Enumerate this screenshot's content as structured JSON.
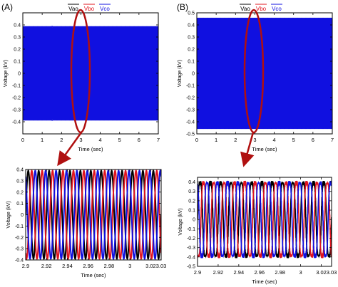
{
  "panels": [
    {
      "letter": "(A)"
    },
    {
      "letter": "(B)"
    }
  ],
  "legend": [
    {
      "label": "Vao",
      "color": "#000000"
    },
    {
      "label": "Vbo",
      "color": "#e0141e"
    },
    {
      "label": "Vco",
      "color": "#1010e0"
    }
  ],
  "chart_data": [
    {
      "id": "A-top",
      "type": "line",
      "xlabel": "Time (sec)",
      "ylabel": "Voltage (kV)",
      "xlim": [
        0,
        7
      ],
      "ylim": [
        -0.5,
        0.5
      ],
      "xticks": [
        0,
        1,
        2,
        3,
        4,
        5,
        6,
        7
      ],
      "yticks": [
        -0.4,
        -0.3,
        -0.2,
        -0.1,
        0,
        0.1,
        0.2,
        0.3,
        0.4
      ],
      "series": [
        {
          "name": "Vao",
          "amplitude_kV": 0.38
        },
        {
          "name": "Vbo",
          "amplitude_kV": 0.38
        },
        {
          "name": "Vco",
          "amplitude_kV": 0.38
        }
      ],
      "x_start": 0,
      "x_end": 7,
      "note_region": "dense"
    },
    {
      "id": "B-top",
      "type": "line",
      "xlabel": "Time (sec)",
      "ylabel": "Voltage (kV)",
      "xlim": [
        0,
        7
      ],
      "ylim": [
        -0.5,
        0.5
      ],
      "xticks": [
        0,
        1,
        2,
        3,
        4,
        5,
        6,
        7
      ],
      "yticks": [
        -0.5,
        -0.4,
        -0.3,
        -0.2,
        -0.1,
        0,
        0.1,
        0.2,
        0.3,
        0.4,
        0.5
      ],
      "series": [
        {
          "name": "Vao",
          "amplitude_kV": 0.45
        },
        {
          "name": "Vbo",
          "amplitude_kV": 0.45
        },
        {
          "name": "Vco",
          "amplitude_kV": 0.45
        }
      ],
      "x_start": 0,
      "x_end": 7,
      "note_region": "dense"
    },
    {
      "id": "A-zoom",
      "type": "line",
      "xlabel": "Time (sec)",
      "ylabel": "Voltage (kV)",
      "xlim": [
        2.9,
        3.03
      ],
      "ylim": [
        -0.4,
        0.4
      ],
      "xticks": [
        2.9,
        2.92,
        2.94,
        2.96,
        2.98,
        3,
        3.02
      ],
      "xticklabels": [
        "2.9",
        "2.92",
        "2.94",
        "2.96",
        "2.98",
        "3",
        "3.02"
      ],
      "yticks": [
        -0.4,
        -0.3,
        -0.2,
        -0.1,
        0,
        0.1,
        0.2,
        0.3,
        0.4
      ],
      "series": [
        {
          "name": "Vao",
          "amplitude_kV": 0.39,
          "frequency_hz": 100,
          "phase_deg": 0
        },
        {
          "name": "Vbo",
          "amplitude_kV": 0.39,
          "frequency_hz": 100,
          "phase_deg": -120
        },
        {
          "name": "Vco",
          "amplitude_kV": 0.39,
          "frequency_hz": 100,
          "phase_deg": 120
        }
      ]
    },
    {
      "id": "B-zoom",
      "type": "line",
      "xlabel": "Time (sec)",
      "ylabel": "Voltage (kV)",
      "xlim": [
        2.9,
        3.03
      ],
      "ylim": [
        -0.5,
        0.45
      ],
      "xticks": [
        2.9,
        2.92,
        2.94,
        2.96,
        2.98,
        3,
        3.02
      ],
      "xticklabels": [
        "2.9",
        "2.92",
        "2.94",
        "2.96",
        "2.98",
        "3",
        "3.02"
      ],
      "yticks": [
        -0.5,
        -0.4,
        -0.3,
        -0.2,
        -0.1,
        0,
        0.1,
        0.2,
        0.3,
        0.4
      ],
      "series": [
        {
          "name": "Vao",
          "amplitude_kV": 0.44,
          "frequency_hz": 100,
          "phase_deg": 0,
          "distorted": true
        },
        {
          "name": "Vbo",
          "amplitude_kV": 0.44,
          "frequency_hz": 100,
          "phase_deg": -120,
          "distorted": true
        },
        {
          "name": "Vco",
          "amplitude_kV": 0.44,
          "frequency_hz": 100,
          "phase_deg": 120,
          "distorted": true
        }
      ]
    }
  ]
}
